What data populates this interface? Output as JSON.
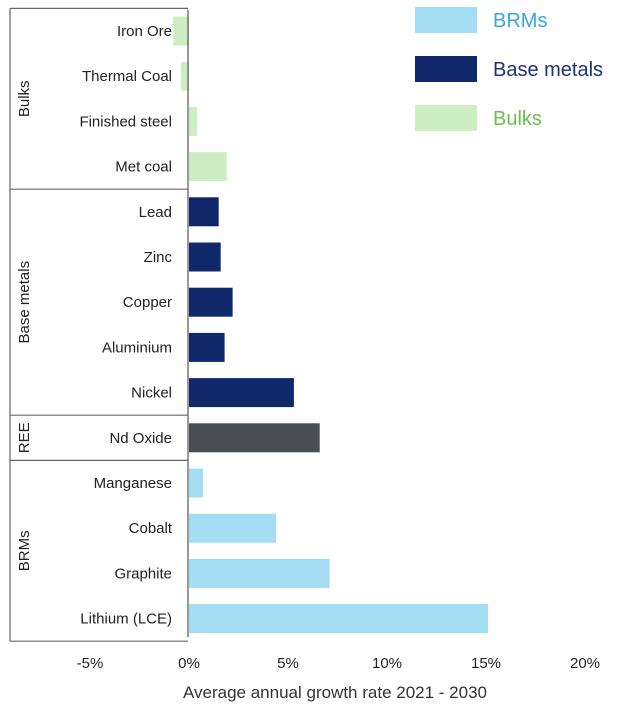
{
  "colors": {
    "BRMs": "#a3dcf3",
    "Base metals": "#0f2869",
    "Bulks": "#cdeec2",
    "REE": "#4a4d52",
    "legend_text_BRMs": "#35a8e2",
    "legend_text_Base metals": "#1b3479",
    "legend_text_Bulks": "#6cc04a"
  },
  "chart_data": {
    "type": "bar",
    "orientation": "horizontal",
    "xlabel": "Average annual growth rate 2021 - 2030",
    "xlim": [
      -5,
      20
    ],
    "xticks": [
      -5,
      0,
      5,
      10,
      15,
      20
    ],
    "xtick_labels": [
      "-5%",
      "0%",
      "5%",
      "10%",
      "15%",
      "20%"
    ],
    "grid": false,
    "legend_position": "top-right",
    "legend": [
      {
        "label": "BRMs",
        "group": "BRMs"
      },
      {
        "label": "Base metals",
        "group": "Base metals"
      },
      {
        "label": "Bulks",
        "group": "Bulks"
      }
    ],
    "groups": [
      {
        "name": "Bulks",
        "items": [
          {
            "category": "Iron Ore",
            "value": -0.8
          },
          {
            "category": "Thermal Coal",
            "value": -0.4
          },
          {
            "category": "Finished steel",
            "value": 0.4
          },
          {
            "category": "Met coal",
            "value": 1.9
          }
        ]
      },
      {
        "name": "Base metals",
        "items": [
          {
            "category": "Lead",
            "value": 1.5
          },
          {
            "category": "Zinc",
            "value": 1.6
          },
          {
            "category": "Copper",
            "value": 2.2
          },
          {
            "category": "Aluminium",
            "value": 1.8
          },
          {
            "category": "Nickel",
            "value": 5.3
          }
        ]
      },
      {
        "name": "REE",
        "items": [
          {
            "category": "Nd Oxide",
            "value": 6.6
          }
        ]
      },
      {
        "name": "BRMs",
        "items": [
          {
            "category": "Manganese",
            "value": 0.7
          },
          {
            "category": "Cobalt",
            "value": 4.4
          },
          {
            "category": "Graphite",
            "value": 7.1
          },
          {
            "category": "Lithium (LCE)",
            "value": 15.1
          }
        ]
      }
    ]
  }
}
